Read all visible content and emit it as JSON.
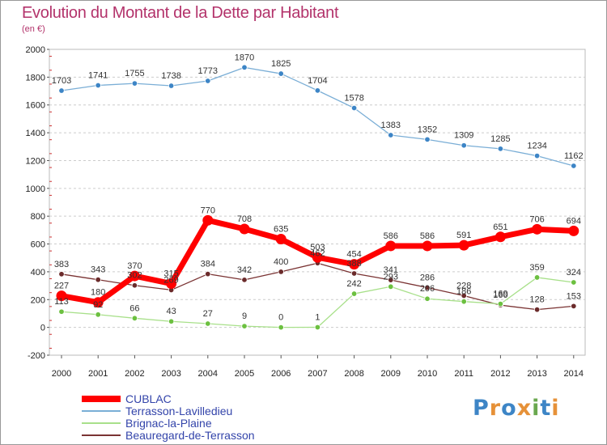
{
  "chart_data": {
    "type": "line",
    "title": "Evolution du Montant de la Dette par Habitant",
    "subtitle": "(en €)",
    "xlabel": "",
    "ylabel": "",
    "categories": [
      "2000",
      "2001",
      "2002",
      "2003",
      "2004",
      "2005",
      "2006",
      "2007",
      "2008",
      "2009",
      "2010",
      "2011",
      "2012",
      "2013",
      "2014"
    ],
    "ylim": [
      -200,
      2000
    ],
    "yticks": [
      -200,
      0,
      200,
      400,
      600,
      800,
      1000,
      1200,
      1400,
      1600,
      1800,
      2000
    ],
    "grid": "horizontal dashed",
    "legend_position": "bottom-left",
    "series": [
      {
        "name": "CUBLAC",
        "values": [
          227,
          180,
          370,
          315,
          770,
          708,
          635,
          503,
          454,
          586,
          586,
          591,
          651,
          706,
          694
        ],
        "color": "#ff0000",
        "point_color": "#ff0000"
      },
      {
        "name": "Terrasson-Lavilledieu",
        "values": [
          1703,
          1741,
          1755,
          1738,
          1773,
          1870,
          1825,
          1704,
          1578,
          1383,
          1352,
          1309,
          1285,
          1234,
          1162
        ],
        "color": "#7aaed6",
        "point_color": "#3d85c6"
      },
      {
        "name": "Brignac-la-Plaine",
        "values": [
          113,
          92,
          66,
          43,
          27,
          9,
          0,
          1,
          242,
          293,
          206,
          186,
          169,
          359,
          324
        ],
        "color": "#a8e08a",
        "point_color": "#6cc040"
      },
      {
        "name": "Beauregard-de-Terrasson",
        "values": [
          383,
          343,
          302,
          269,
          384,
          342,
          400,
          462,
          388,
          341,
          286,
          228,
          160,
          128,
          153
        ],
        "color": "#7a3333",
        "point_color": "#6b2b2b"
      }
    ]
  },
  "logo": {
    "text": "Proxiti"
  }
}
